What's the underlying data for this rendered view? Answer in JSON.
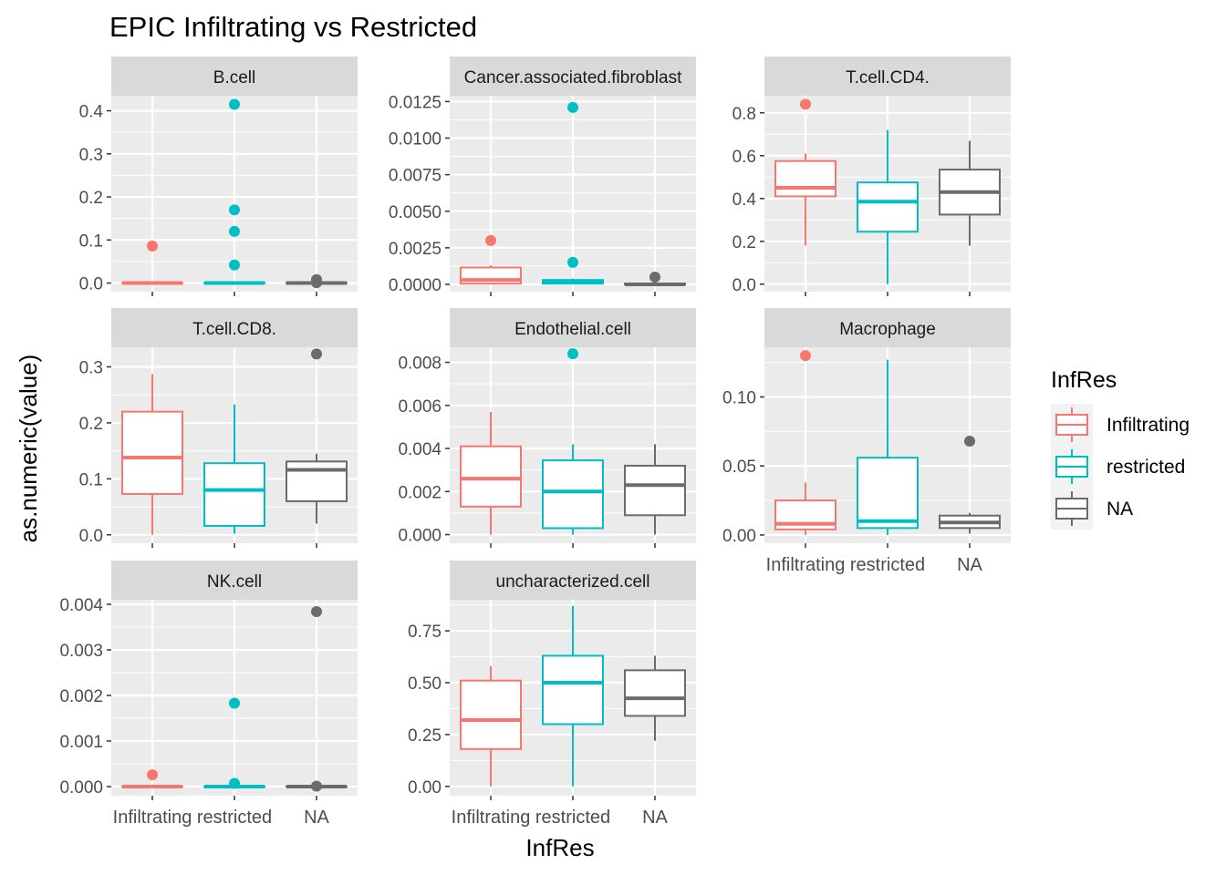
{
  "chart_data": {
    "type": "boxplot",
    "title": "EPIC Infiltrating vs Restricted",
    "xlabel": "InfRes",
    "ylabel": "as.numeric(value)",
    "categories": [
      "Infiltrating",
      "restricted",
      "NA"
    ],
    "legend": {
      "title": "InfRes",
      "position": "right",
      "entries": [
        "Infiltrating",
        "restricted",
        "NA"
      ]
    },
    "colors": {
      "Infiltrating": "#F8766D",
      "restricted": "#00BFC4",
      "NA": "#6B6B6B",
      "panel_bg": "#EBEBEB",
      "strip_bg": "#D9D9D9",
      "grid": "#FFFFFF"
    },
    "grid": true,
    "panels": [
      {
        "title": "B.cell",
        "ylim": [
          -0.02,
          0.435
        ],
        "yticks": [
          0,
          0.1,
          0.2,
          0.3,
          0.4
        ],
        "yticklabels": [
          "0.0",
          "0.1",
          "0.2",
          "0.3",
          "0.4"
        ],
        "show_x_labels": false,
        "boxes": [
          {
            "group": "Infiltrating",
            "q1": 0,
            "median": 0,
            "q3": 0,
            "lower": 0,
            "upper": 0,
            "outliers": [
              0.086
            ]
          },
          {
            "group": "restricted",
            "q1": 0,
            "median": 0,
            "q3": 0,
            "lower": 0,
            "upper": 0,
            "outliers": [
              0.415,
              0.17,
              0.12,
              0.042
            ]
          },
          {
            "group": "NA",
            "q1": 0,
            "median": 0,
            "q3": 0,
            "lower": 0,
            "upper": 0,
            "outliers": [
              0.008,
              0.001
            ]
          }
        ]
      },
      {
        "title": "Cancer.associated.fibroblast",
        "ylim": [
          -0.0005,
          0.0129
        ],
        "yticks": [
          0,
          0.0025,
          0.005,
          0.0075,
          0.01,
          0.0125
        ],
        "yticklabels": [
          "0.0000",
          "0.0025",
          "0.0050",
          "0.0075",
          "0.0100",
          "0.0125"
        ],
        "show_x_labels": false,
        "boxes": [
          {
            "group": "Infiltrating",
            "q1": 5e-05,
            "median": 0.0003,
            "q3": 0.00115,
            "lower": 0,
            "upper": 0.0013,
            "outliers": [
              0.003
            ]
          },
          {
            "group": "restricted",
            "q1": 5e-05,
            "median": 0.00015,
            "q3": 0.0003,
            "lower": 0,
            "upper": 0.0004,
            "outliers": [
              0.0121,
              0.0015
            ]
          },
          {
            "group": "NA",
            "q1": 0,
            "median": 0,
            "q3": 5e-05,
            "lower": 0,
            "upper": 0.0001,
            "outliers": [
              0.0005
            ]
          }
        ]
      },
      {
        "title": "T.cell.CD4.",
        "ylim": [
          -0.035,
          0.88
        ],
        "yticks": [
          0,
          0.2,
          0.4,
          0.6,
          0.8
        ],
        "yticklabels": [
          "0.0",
          "0.2",
          "0.4",
          "0.6",
          "0.8"
        ],
        "show_x_labels": false,
        "boxes": [
          {
            "group": "Infiltrating",
            "q1": 0.41,
            "median": 0.45,
            "q3": 0.575,
            "lower": 0.18,
            "upper": 0.61,
            "outliers": [
              0.84
            ]
          },
          {
            "group": "restricted",
            "q1": 0.245,
            "median": 0.385,
            "q3": 0.475,
            "lower": 0,
            "upper": 0.72,
            "outliers": []
          },
          {
            "group": "NA",
            "q1": 0.325,
            "median": 0.43,
            "q3": 0.535,
            "lower": 0.18,
            "upper": 0.67,
            "outliers": []
          }
        ]
      },
      {
        "title": "T.cell.CD8.",
        "ylim": [
          -0.015,
          0.335
        ],
        "yticks": [
          0,
          0.1,
          0.2,
          0.3
        ],
        "yticklabels": [
          "0.0",
          "0.1",
          "0.2",
          "0.3"
        ],
        "show_x_labels": false,
        "boxes": [
          {
            "group": "Infiltrating",
            "q1": 0.073,
            "median": 0.138,
            "q3": 0.22,
            "lower": 0,
            "upper": 0.287,
            "outliers": []
          },
          {
            "group": "restricted",
            "q1": 0.016,
            "median": 0.08,
            "q3": 0.128,
            "lower": 0.002,
            "upper": 0.233,
            "outliers": []
          },
          {
            "group": "NA",
            "q1": 0.06,
            "median": 0.116,
            "q3": 0.131,
            "lower": 0.02,
            "upper": 0.145,
            "outliers": [
              0.323
            ]
          }
        ]
      },
      {
        "title": "Endothelial.cell",
        "ylim": [
          -0.0004,
          0.0087
        ],
        "yticks": [
          0,
          0.002,
          0.004,
          0.006,
          0.008
        ],
        "yticklabels": [
          "0.000",
          "0.002",
          "0.004",
          "0.006",
          "0.008"
        ],
        "show_x_labels": false,
        "boxes": [
          {
            "group": "Infiltrating",
            "q1": 0.0013,
            "median": 0.0026,
            "q3": 0.0041,
            "lower": 0,
            "upper": 0.0057,
            "outliers": []
          },
          {
            "group": "restricted",
            "q1": 0.0003,
            "median": 0.002,
            "q3": 0.00345,
            "lower": 0,
            "upper": 0.0042,
            "outliers": [
              0.0084
            ]
          },
          {
            "group": "NA",
            "q1": 0.0009,
            "median": 0.0023,
            "q3": 0.0032,
            "lower": 0,
            "upper": 0.0042,
            "outliers": []
          }
        ]
      },
      {
        "title": "Macrophage",
        "ylim": [
          -0.006,
          0.136
        ],
        "yticks": [
          0,
          0.05,
          0.1
        ],
        "yticklabels": [
          "0.00",
          "0.05",
          "0.10"
        ],
        "show_x_labels": true,
        "boxes": [
          {
            "group": "Infiltrating",
            "q1": 0.004,
            "median": 0.008,
            "q3": 0.025,
            "lower": 0,
            "upper": 0.038,
            "outliers": [
              0.13
            ]
          },
          {
            "group": "restricted",
            "q1": 0.005,
            "median": 0.01,
            "q3": 0.056,
            "lower": 0,
            "upper": 0.127,
            "outliers": []
          },
          {
            "group": "NA",
            "q1": 0.005,
            "median": 0.009,
            "q3": 0.014,
            "lower": 0.001,
            "upper": 0.016,
            "outliers": [
              0.068
            ]
          }
        ]
      },
      {
        "title": "NK.cell",
        "ylim": [
          -0.0002,
          0.0041
        ],
        "yticks": [
          0,
          0.001,
          0.002,
          0.003,
          0.004
        ],
        "yticklabels": [
          "0.000",
          "0.001",
          "0.002",
          "0.003",
          "0.004"
        ],
        "show_x_labels": true,
        "boxes": [
          {
            "group": "Infiltrating",
            "q1": 0,
            "median": 0,
            "q3": 0,
            "lower": 0,
            "upper": 0,
            "outliers": [
              0.00026
            ]
          },
          {
            "group": "restricted",
            "q1": 0,
            "median": 0,
            "q3": 0,
            "lower": 0,
            "upper": 0,
            "outliers": [
              0.00183,
              7e-05
            ]
          },
          {
            "group": "NA",
            "q1": 0,
            "median": 0,
            "q3": 0,
            "lower": 0,
            "upper": 0,
            "outliers": [
              0.00384,
              1e-05
            ]
          }
        ]
      },
      {
        "title": "uncharacterized.cell",
        "ylim": [
          -0.045,
          0.9
        ],
        "yticks": [
          0,
          0.25,
          0.5,
          0.75
        ],
        "yticklabels": [
          "0.00",
          "0.25",
          "0.50",
          "0.75"
        ],
        "show_x_labels": true,
        "boxes": [
          {
            "group": "Infiltrating",
            "q1": 0.18,
            "median": 0.32,
            "q3": 0.51,
            "lower": 0,
            "upper": 0.58,
            "outliers": []
          },
          {
            "group": "restricted",
            "q1": 0.3,
            "median": 0.5,
            "q3": 0.63,
            "lower": 0,
            "upper": 0.87,
            "outliers": []
          },
          {
            "group": "NA",
            "q1": 0.34,
            "median": 0.425,
            "q3": 0.56,
            "lower": 0.22,
            "upper": 0.63,
            "outliers": []
          }
        ]
      }
    ]
  }
}
